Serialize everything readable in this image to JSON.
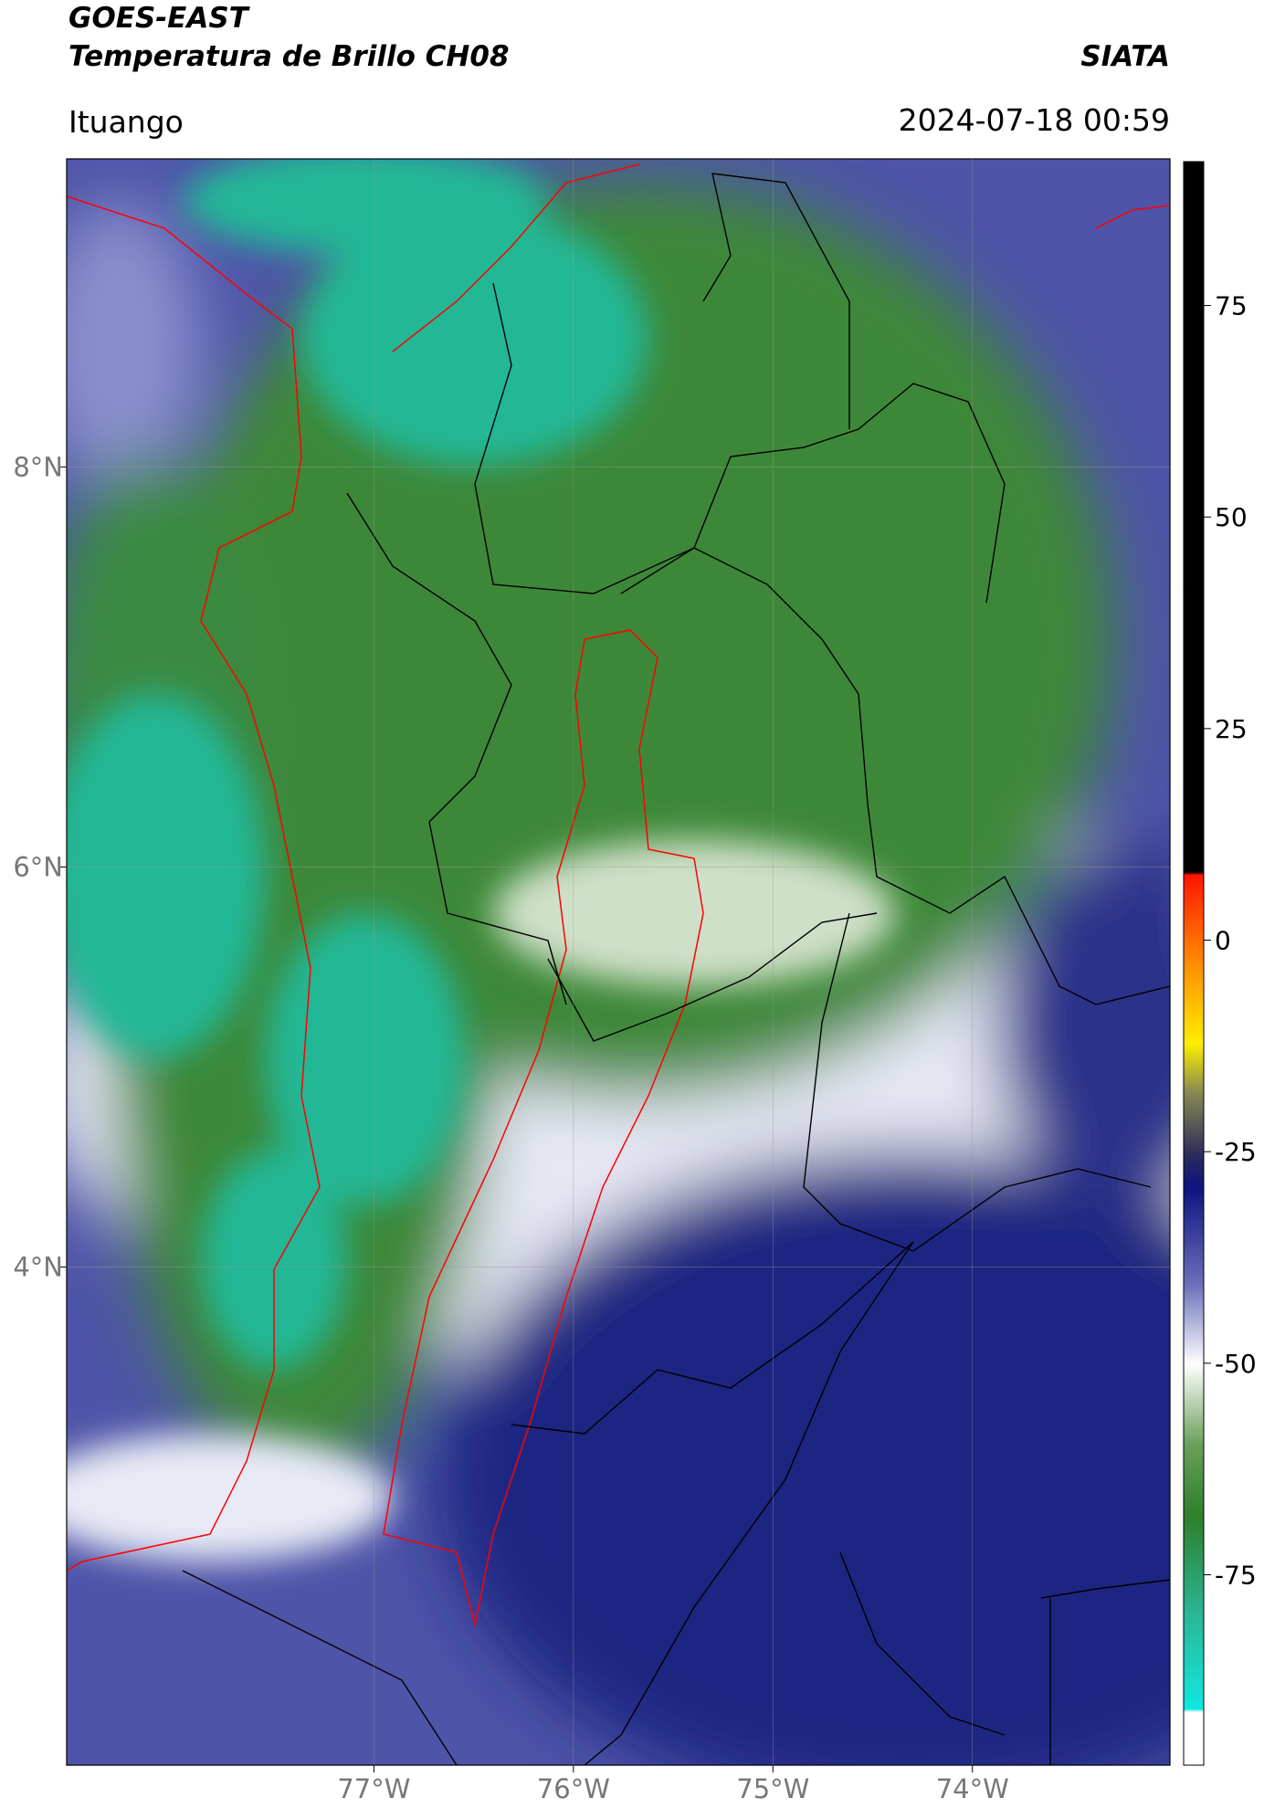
{
  "header": {
    "title": "GOES-EAST",
    "subtitle": "Temperatura de Brillo CH08",
    "brand": "SIATA",
    "location": "Ituango",
    "datetime": "2024-07-18 00:59"
  },
  "map": {
    "xlim": [
      -78.54,
      -73.01
    ],
    "ylim": [
      1.51,
      9.54
    ],
    "grid": true,
    "xticks": [
      {
        "value": -77,
        "label": "77°W"
      },
      {
        "value": -76,
        "label": "76°W"
      },
      {
        "value": -75,
        "label": "75°W"
      },
      {
        "value": -74,
        "label": "74°W"
      }
    ],
    "yticks": [
      {
        "value": 8,
        "label": "8°N"
      },
      {
        "value": 6,
        "label": "6°N"
      },
      {
        "value": 4,
        "label": "4°N"
      }
    ]
  },
  "colorbar": {
    "lim": [
      -97.5,
      92
    ],
    "ticks": [
      75,
      50,
      25,
      0,
      -25,
      -50,
      -75
    ]
  }
}
